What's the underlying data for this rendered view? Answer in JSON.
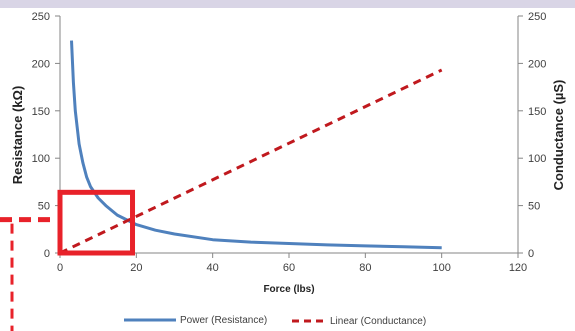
{
  "chart_data": {
    "type": "line",
    "title": "",
    "xlabel": "Force (lbs)",
    "ylabel_left": "Resistance (kΩ)",
    "ylabel_right": "Conductance (µS)",
    "xlim": [
      0,
      120
    ],
    "ylim_left": [
      0,
      250
    ],
    "ylim_right": [
      0,
      250
    ],
    "x_ticks": [
      "0",
      "20",
      "40",
      "60",
      "80",
      "100",
      "120"
    ],
    "y_left_ticks": [
      "0",
      "50",
      "100",
      "150",
      "200",
      "250"
    ],
    "y_right_ticks": [
      "0",
      "50",
      "100",
      "150",
      "200",
      "250"
    ],
    "grid": false,
    "legend_position": "bottom",
    "series": [
      {
        "name": "Power (Resistance)",
        "axis": "left",
        "style": "solid",
        "color": "#4f81bd",
        "x": [
          3,
          3.5,
          4,
          5,
          6,
          7,
          8,
          10,
          12,
          15,
          20,
          25,
          30,
          40,
          50,
          60,
          70,
          80,
          90,
          100
        ],
        "y": [
          224,
          180,
          150,
          115,
          95,
          80,
          70,
          58,
          50,
          40,
          30,
          24,
          20,
          14,
          11.5,
          10,
          8.5,
          7.5,
          6.5,
          5.5
        ]
      },
      {
        "name": "Linear (Conductance)",
        "axis": "right",
        "style": "dashed",
        "color": "#c0191e",
        "x": [
          0,
          100
        ],
        "y": [
          0,
          193
        ]
      }
    ]
  },
  "highlight": {
    "color": "#e8222a",
    "x_range": [
      0,
      19
    ],
    "y_range": [
      0,
      64
    ]
  }
}
